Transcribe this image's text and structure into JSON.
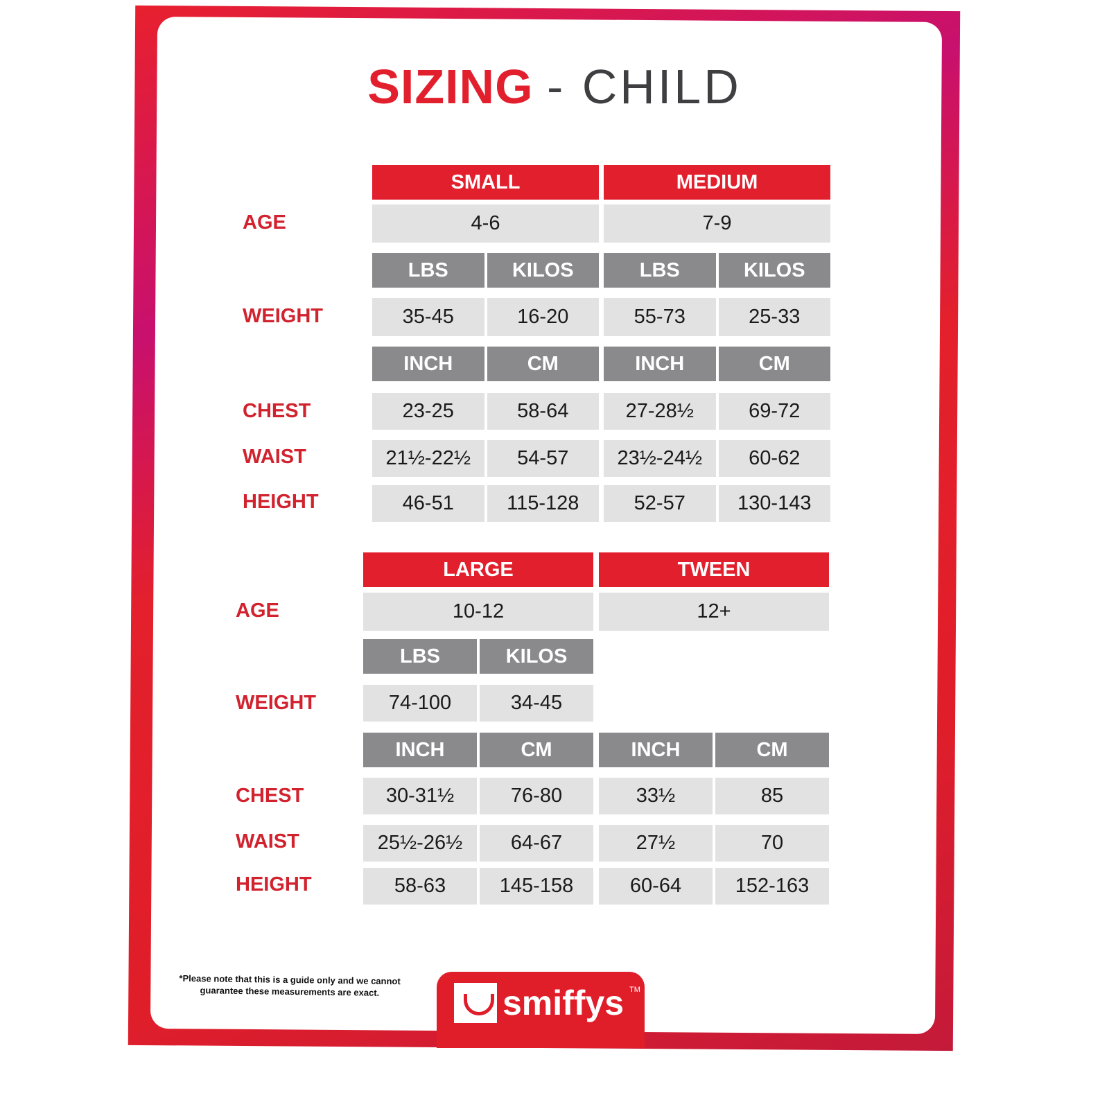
{
  "title": {
    "bold": "SIZING",
    "rest": "- CHILD"
  },
  "row_labels": {
    "age": "AGE",
    "weight": "WEIGHT",
    "chest": "CHEST",
    "waist": "WAIST",
    "height": "HEIGHT"
  },
  "sections": [
    {
      "sizes": [
        {
          "name": "SMALL",
          "age": "4-6",
          "weight_units": [
            "LBS",
            "KILOS"
          ],
          "weight": [
            "35-45",
            "16-20"
          ],
          "measure_units": [
            "INCH",
            "CM"
          ],
          "chest": [
            "23-25",
            "58-64"
          ],
          "waist": [
            "21½-22½",
            "54-57"
          ],
          "height": [
            "46-51",
            "115-128"
          ]
        },
        {
          "name": "MEDIUM",
          "age": "7-9",
          "weight_units": [
            "LBS",
            "KILOS"
          ],
          "weight": [
            "55-73",
            "25-33"
          ],
          "measure_units": [
            "INCH",
            "CM"
          ],
          "chest": [
            "27-28½",
            "69-72"
          ],
          "waist": [
            "23½-24½",
            "60-62"
          ],
          "height": [
            "52-57",
            "130-143"
          ]
        }
      ]
    },
    {
      "sizes": [
        {
          "name": "LARGE",
          "age": "10-12",
          "weight_units": [
            "LBS",
            "KILOS"
          ],
          "weight": [
            "74-100",
            "34-45"
          ],
          "measure_units": [
            "INCH",
            "CM"
          ],
          "chest": [
            "30-31½",
            "76-80"
          ],
          "waist": [
            "25½-26½",
            "64-67"
          ],
          "height": [
            "58-63",
            "145-158"
          ]
        },
        {
          "name": "TWEEN",
          "age": "12+",
          "measure_units": [
            "INCH",
            "CM"
          ],
          "chest": [
            "33½",
            "85"
          ],
          "waist": [
            "27½",
            "70"
          ],
          "height": [
            "60-64",
            "152-163"
          ]
        }
      ]
    }
  ],
  "footer": {
    "note_line1": "*Please note that this is a guide only and we cannot",
    "note_line2": "guarantee these measurements are exact.",
    "brand": "smiffys",
    "trademark": "TM"
  },
  "colors": {
    "brand_red": "#e21f2d",
    "unit_gray": "#8a8a8d",
    "value_gray": "#e2e2e2"
  }
}
